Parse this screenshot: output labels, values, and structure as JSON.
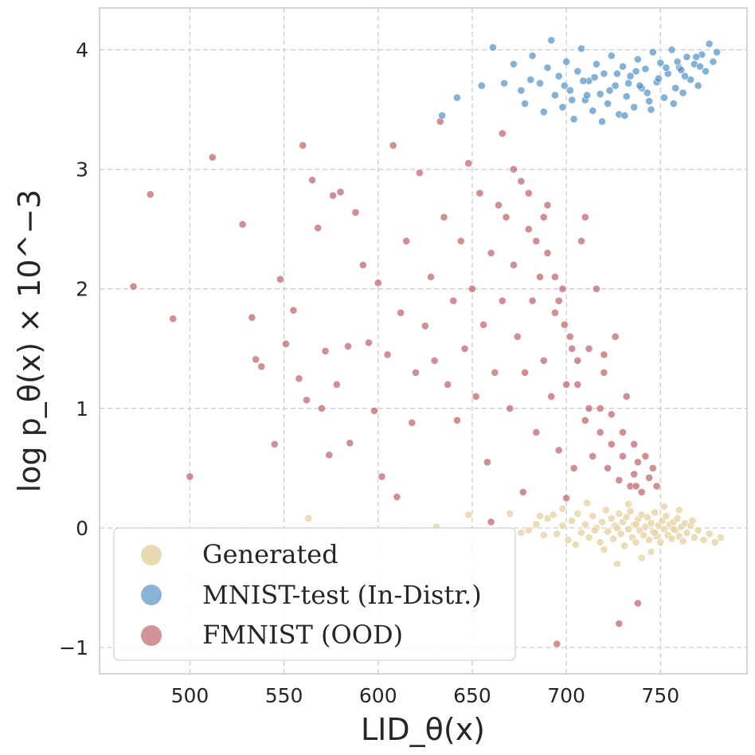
{
  "chart_data": {
    "type": "scatter",
    "title": "",
    "xlabel": "LID_θ(x)",
    "ylabel": "log p_θ(x) × 10^−3",
    "xlim": [
      452,
      796
    ],
    "ylim": [
      -1.22,
      4.35
    ],
    "x_ticks": [
      {
        "value": 500,
        "label": "500"
      },
      {
        "value": 550,
        "label": "550"
      },
      {
        "value": 600,
        "label": "600"
      },
      {
        "value": 650,
        "label": "650"
      },
      {
        "value": 700,
        "label": "700"
      },
      {
        "value": 750,
        "label": "750"
      }
    ],
    "y_ticks": [
      {
        "value": -1,
        "label": "−1"
      },
      {
        "value": 0,
        "label": "0"
      },
      {
        "value": 1,
        "label": "1"
      },
      {
        "value": 2,
        "label": "2"
      },
      {
        "value": 3,
        "label": "3"
      },
      {
        "value": 4,
        "label": "4"
      }
    ],
    "grid": true,
    "legend_position": "bottom-left",
    "series": [
      {
        "name": "Generated",
        "color": "#e6d4a6",
        "edge_color": "#ffffff",
        "points": [
          [
            563,
            0.08
          ],
          [
            631,
            0.01
          ],
          [
            648,
            0.11
          ],
          [
            670,
            0.12
          ],
          [
            676,
            -0.04
          ],
          [
            680,
            -0.02
          ],
          [
            684,
            0.03
          ],
          [
            688,
            -0.06
          ],
          [
            690,
            0.08
          ],
          [
            695,
            -0.05
          ],
          [
            698,
            0.02
          ],
          [
            701,
            -0.1
          ],
          [
            703,
            0.06
          ],
          [
            706,
            0.12
          ],
          [
            708,
            -0.04
          ],
          [
            710,
            0.03
          ],
          [
            712,
            -0.08
          ],
          [
            714,
            0.1
          ],
          [
            716,
            0.0
          ],
          [
            718,
            -0.12
          ],
          [
            719,
            0.05
          ],
          [
            721,
            0.15
          ],
          [
            722,
            -0.03
          ],
          [
            724,
            0.08
          ],
          [
            725,
            -0.09
          ],
          [
            726,
            0.02
          ],
          [
            728,
            0.12
          ],
          [
            729,
            -0.05
          ],
          [
            730,
            0.05
          ],
          [
            731,
            -0.15
          ],
          [
            732,
            0.09
          ],
          [
            733,
            -0.01
          ],
          [
            734,
            0.14
          ],
          [
            735,
            -0.08
          ],
          [
            736,
            0.03
          ],
          [
            737,
            -0.12
          ],
          [
            738,
            0.07
          ],
          [
            739,
            -0.02
          ],
          [
            740,
            0.11
          ],
          [
            741,
            -0.06
          ],
          [
            742,
            0.01
          ],
          [
            743,
            0.09
          ],
          [
            744,
            -0.1
          ],
          [
            745,
            0.04
          ],
          [
            746,
            -0.03
          ],
          [
            747,
            0.13
          ],
          [
            748,
            -0.07
          ],
          [
            749,
            0.02
          ],
          [
            750,
            -0.12
          ],
          [
            751,
            0.06
          ],
          [
            752,
            -0.01
          ],
          [
            753,
            0.1
          ],
          [
            754,
            -0.06
          ],
          [
            755,
            0.03
          ],
          [
            756,
            -0.09
          ],
          [
            757,
            0.05
          ],
          [
            758,
            -0.02
          ],
          [
            759,
            0.08
          ],
          [
            760,
            -0.07
          ],
          [
            761,
            0.01
          ],
          [
            762,
            -0.11
          ],
          [
            763,
            0.04
          ],
          [
            764,
            -0.04
          ],
          [
            766,
            0.02
          ],
          [
            768,
            -0.08
          ],
          [
            770,
            -0.02
          ],
          [
            773,
            -0.1
          ],
          [
            776,
            -0.05
          ],
          [
            779,
            -0.12
          ],
          [
            782,
            -0.08
          ],
          [
            727,
            -0.3
          ],
          [
            740,
            -0.25
          ],
          [
            711,
            0.21
          ],
          [
            733,
            0.2
          ],
          [
            752,
            0.18
          ],
          [
            698,
            0.16
          ],
          [
            720,
            -0.18
          ],
          [
            745,
            -0.2
          ],
          [
            760,
            0.15
          ],
          [
            705,
            -0.14
          ],
          [
            693,
            0.11
          ],
          [
            686,
            0.1
          ],
          [
            715,
            -0.02
          ],
          [
            727,
            0.0
          ],
          [
            737,
            0.03
          ],
          [
            747,
            -0.04
          ],
          [
            757,
            -0.01
          ],
          [
            767,
            0.06
          ]
        ]
      },
      {
        "name": "MNIST-test (In-Distr.)",
        "color": "#4a8cc2",
        "edge_color": "#ffffff",
        "points": [
          [
            634,
            3.45
          ],
          [
            642,
            3.6
          ],
          [
            655,
            3.7
          ],
          [
            661,
            4.02
          ],
          [
            672,
            3.88
          ],
          [
            678,
            3.55
          ],
          [
            682,
            3.95
          ],
          [
            686,
            3.72
          ],
          [
            688,
            3.48
          ],
          [
            690,
            3.85
          ],
          [
            692,
            4.08
          ],
          [
            694,
            3.62
          ],
          [
            696,
            3.78
          ],
          [
            698,
            3.52
          ],
          [
            700,
            3.9
          ],
          [
            702,
            3.66
          ],
          [
            704,
            3.42
          ],
          [
            706,
            3.82
          ],
          [
            708,
            4.01
          ],
          [
            710,
            3.58
          ],
          [
            712,
            3.74
          ],
          [
            714,
            3.49
          ],
          [
            716,
            3.88
          ],
          [
            718,
            3.63
          ],
          [
            720,
            3.8
          ],
          [
            722,
            3.55
          ],
          [
            724,
            3.95
          ],
          [
            726,
            3.7
          ],
          [
            728,
            3.46
          ],
          [
            730,
            3.86
          ],
          [
            732,
            3.61
          ],
          [
            734,
            3.78
          ],
          [
            736,
            3.52
          ],
          [
            738,
            3.92
          ],
          [
            740,
            3.68
          ],
          [
            742,
            3.84
          ],
          [
            744,
            3.57
          ],
          [
            746,
            3.98
          ],
          [
            748,
            3.73
          ],
          [
            750,
            3.89
          ],
          [
            752,
            3.6
          ],
          [
            754,
            3.8
          ],
          [
            756,
            4.0
          ],
          [
            758,
            3.68
          ],
          [
            760,
            3.85
          ],
          [
            762,
            3.64
          ],
          [
            764,
            3.94
          ],
          [
            766,
            3.75
          ],
          [
            768,
            3.88
          ],
          [
            770,
            3.7
          ],
          [
            772,
            3.96
          ],
          [
            774,
            3.82
          ],
          [
            776,
            4.05
          ],
          [
            778,
            3.9
          ],
          [
            780,
            3.98
          ],
          [
            719,
            3.4
          ],
          [
            731,
            3.45
          ],
          [
            745,
            3.5
          ],
          [
            757,
            3.55
          ],
          [
            699,
            3.7
          ],
          [
            709,
            3.74
          ],
          [
            727,
            3.8
          ],
          [
            737,
            3.82
          ],
          [
            753,
            3.85
          ],
          [
            763,
            3.78
          ],
          [
            711,
            3.62
          ],
          [
            723,
            3.66
          ],
          [
            739,
            3.7
          ],
          [
            749,
            3.76
          ],
          [
            759,
            3.9
          ],
          [
            769,
            3.94
          ],
          [
            703,
            3.58
          ],
          [
            715,
            3.77
          ],
          [
            733,
            3.72
          ],
          [
            743,
            3.64
          ],
          [
            761,
            3.83
          ],
          [
            771,
            3.86
          ],
          [
            681,
            3.75
          ],
          [
            676,
            3.66
          ],
          [
            667,
            3.72
          ]
        ]
      },
      {
        "name": "FMNIST (OOD)",
        "color": "#b95a60",
        "edge_color": "#ffffff",
        "points": [
          [
            470,
            2.02
          ],
          [
            479,
            2.79
          ],
          [
            491,
            1.75
          ],
          [
            500,
            0.43
          ],
          [
            512,
            3.1
          ],
          [
            528,
            2.54
          ],
          [
            533,
            1.76
          ],
          [
            535,
            1.41
          ],
          [
            538,
            1.35
          ],
          [
            545,
            0.7
          ],
          [
            548,
            2.08
          ],
          [
            551,
            1.54
          ],
          [
            555,
            1.82
          ],
          [
            558,
            1.25
          ],
          [
            560,
            3.2
          ],
          [
            562,
            1.07
          ],
          [
            565,
            2.91
          ],
          [
            568,
            2.51
          ],
          [
            570,
            1.0
          ],
          [
            572,
            1.48
          ],
          [
            574,
            0.61
          ],
          [
            576,
            2.78
          ],
          [
            578,
            1.2
          ],
          [
            580,
            2.81
          ],
          [
            584,
            1.52
          ],
          [
            585,
            0.71
          ],
          [
            588,
            2.64
          ],
          [
            592,
            2.2
          ],
          [
            595,
            1.55
          ],
          [
            598,
            0.98
          ],
          [
            600,
            2.05
          ],
          [
            602,
            0.43
          ],
          [
            605,
            1.45
          ],
          [
            608,
            3.2
          ],
          [
            610,
            0.26
          ],
          [
            612,
            1.8
          ],
          [
            615,
            2.4
          ],
          [
            618,
            0.88
          ],
          [
            620,
            1.3
          ],
          [
            622,
            2.97
          ],
          [
            625,
            1.69
          ],
          [
            628,
            2.1
          ],
          [
            630,
            1.4
          ],
          [
            633,
            3.4
          ],
          [
            635,
            2.6
          ],
          [
            637,
            1.2
          ],
          [
            640,
            1.9
          ],
          [
            642,
            0.9
          ],
          [
            644,
            2.4
          ],
          [
            646,
            1.5
          ],
          [
            648,
            3.05
          ],
          [
            650,
            2.0
          ],
          [
            652,
            1.1
          ],
          [
            654,
            2.8
          ],
          [
            656,
            1.7
          ],
          [
            658,
            0.55
          ],
          [
            660,
            2.3
          ],
          [
            662,
            1.3
          ],
          [
            664,
            2.7
          ],
          [
            666,
            1.9
          ],
          [
            668,
            2.6
          ],
          [
            670,
            1.0
          ],
          [
            672,
            2.2
          ],
          [
            674,
            1.6
          ],
          [
            676,
            2.9
          ],
          [
            678,
            1.3
          ],
          [
            680,
            2.5
          ],
          [
            682,
            1.9
          ],
          [
            684,
            0.8
          ],
          [
            686,
            2.1
          ],
          [
            688,
            1.4
          ],
          [
            690,
            2.7
          ],
          [
            692,
            1.1
          ],
          [
            694,
            1.8
          ],
          [
            696,
            0.65
          ],
          [
            698,
            2.0
          ],
          [
            700,
            1.2
          ],
          [
            702,
            1.6
          ],
          [
            704,
            0.5
          ],
          [
            706,
            1.4
          ],
          [
            708,
            2.4
          ],
          [
            710,
            0.9
          ],
          [
            712,
            1.5
          ],
          [
            714,
            0.6
          ],
          [
            716,
            2.0
          ],
          [
            718,
            1.0
          ],
          [
            720,
            1.3
          ],
          [
            722,
            0.5
          ],
          [
            724,
            0.95
          ],
          [
            726,
            1.6
          ],
          [
            728,
            0.4
          ],
          [
            730,
            0.8
          ],
          [
            732,
            1.1
          ],
          [
            734,
            0.35
          ],
          [
            736,
            0.7
          ],
          [
            738,
            0.55
          ],
          [
            740,
            0.3
          ],
          [
            742,
            0.6
          ],
          [
            744,
            0.42
          ],
          [
            746,
            0.5
          ],
          [
            748,
            0.35
          ],
          [
            666,
            3.3
          ],
          [
            672,
            3.0
          ],
          [
            680,
            2.8
          ],
          [
            690,
            2.3
          ],
          [
            694,
            2.1
          ],
          [
            699,
            1.7
          ],
          [
            703,
            1.5
          ],
          [
            684,
            2.4
          ],
          [
            688,
            2.6
          ],
          [
            696,
            1.9
          ],
          [
            706,
            1.2
          ],
          [
            712,
            1.0
          ],
          [
            718,
            0.8
          ],
          [
            724,
            0.7
          ],
          [
            730,
            0.6
          ],
          [
            736,
            0.45
          ],
          [
            677,
            0.3
          ],
          [
            695,
            -0.97
          ],
          [
            728,
            -0.8
          ],
          [
            738,
            -0.63
          ],
          [
            720,
            1.45
          ],
          [
            737,
            0.35
          ],
          [
            700,
            0.25
          ],
          [
            660,
            0.05
          ],
          [
            710,
            2.6
          ]
        ]
      }
    ]
  }
}
